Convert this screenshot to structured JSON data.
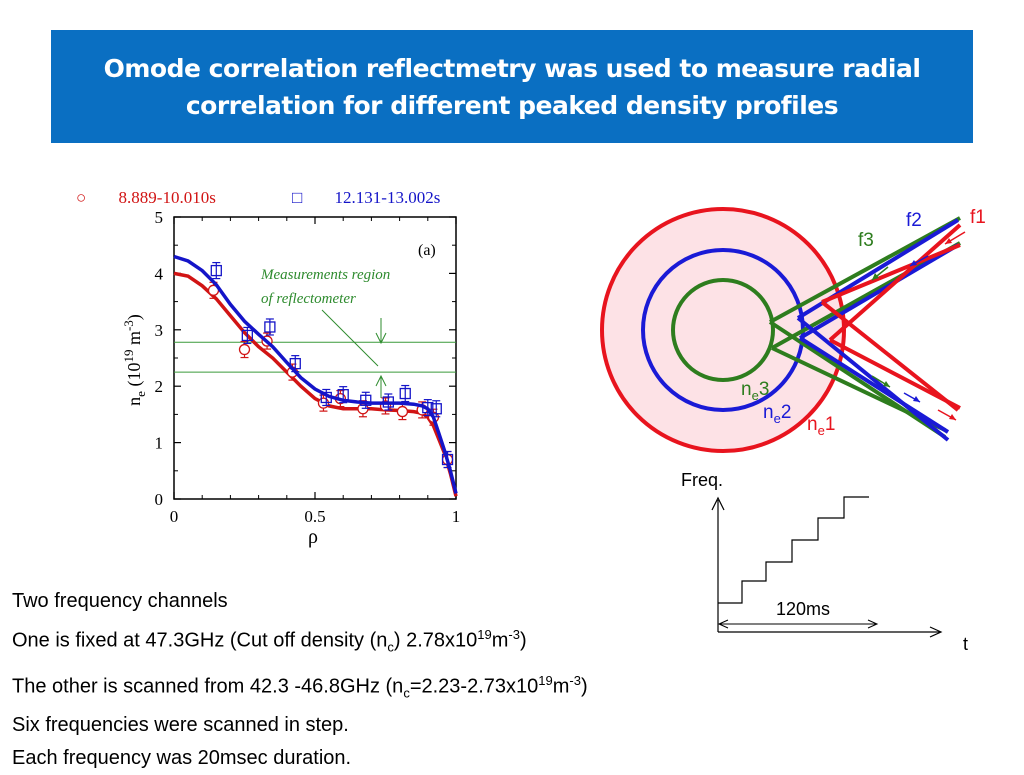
{
  "title": {
    "line1": "Omode correlation reflectmetry   was used to measure radial",
    "line2": "correlation for different peaked density profiles"
  },
  "legend": {
    "series1_marker": "○",
    "series1_label": "8.889-10.010s",
    "series1_color": "#d11414",
    "series2_marker": "□",
    "series2_label": "12.131-13.002s",
    "series2_color": "#1414c8"
  },
  "chart_data": {
    "type": "line",
    "panel_label": "(a)",
    "xlabel": "ρ",
    "ylabel_parts": [
      "n",
      "e",
      " (10",
      "19",
      " m",
      "-3",
      ")"
    ],
    "xlim": [
      0,
      1
    ],
    "ylim": [
      0,
      5
    ],
    "xticks": [
      "0",
      "0.5",
      "1"
    ],
    "yticks": [
      "0",
      "1",
      "2",
      "3",
      "4",
      "5"
    ],
    "annotation": [
      "Measurements region",
      "of reflectometer"
    ],
    "reference_lines": [
      2.78,
      2.25
    ],
    "series": [
      {
        "name": "8.889-10.010s",
        "color": "#d11414",
        "marker": "circle",
        "fit_x": [
          0.0,
          0.05,
          0.1,
          0.15,
          0.2,
          0.25,
          0.3,
          0.35,
          0.4,
          0.45,
          0.5,
          0.55,
          0.6,
          0.65,
          0.7,
          0.75,
          0.8,
          0.85,
          0.88,
          0.9,
          0.92,
          0.94,
          0.96,
          0.98,
          1.0
        ],
        "fit_y": [
          4.0,
          3.95,
          3.78,
          3.55,
          3.25,
          2.95,
          2.7,
          2.5,
          2.25,
          2.0,
          1.78,
          1.65,
          1.6,
          1.6,
          1.6,
          1.58,
          1.57,
          1.55,
          1.52,
          1.45,
          1.3,
          1.05,
          0.8,
          0.45,
          0.05
        ],
        "points_x": [
          0.14,
          0.25,
          0.33,
          0.42,
          0.53,
          0.59,
          0.67,
          0.75,
          0.81,
          0.88,
          0.92,
          0.97
        ],
        "points_y": [
          3.7,
          2.65,
          2.8,
          2.25,
          1.7,
          1.78,
          1.6,
          1.65,
          1.55,
          1.58,
          1.45,
          0.7
        ]
      },
      {
        "name": "12.131-13.002s",
        "color": "#1414c8",
        "marker": "square",
        "fit_x": [
          0.0,
          0.05,
          0.1,
          0.15,
          0.2,
          0.25,
          0.3,
          0.35,
          0.4,
          0.45,
          0.5,
          0.55,
          0.6,
          0.65,
          0.7,
          0.75,
          0.8,
          0.85,
          0.88,
          0.9,
          0.92,
          0.94,
          0.96,
          0.98,
          1.0
        ],
        "fit_y": [
          4.3,
          4.22,
          4.05,
          3.8,
          3.45,
          3.15,
          2.92,
          2.7,
          2.42,
          2.15,
          1.95,
          1.82,
          1.75,
          1.72,
          1.7,
          1.7,
          1.7,
          1.68,
          1.65,
          1.6,
          1.45,
          1.15,
          0.85,
          0.5,
          0.1
        ],
        "points_x": [
          0.15,
          0.26,
          0.34,
          0.43,
          0.54,
          0.6,
          0.68,
          0.76,
          0.82,
          0.9,
          0.93,
          0.97
        ],
        "points_y": [
          4.05,
          2.9,
          3.05,
          2.4,
          1.8,
          1.85,
          1.75,
          1.72,
          1.87,
          1.62,
          1.6,
          0.7
        ]
      }
    ]
  },
  "diagram": {
    "labels": {
      "f1": "f1",
      "f2": "f2",
      "f3": "f3",
      "n_letter": "n",
      "sub_e": "e",
      "ne1_num": "1",
      "ne2_num": "2",
      "ne3_num": "3"
    },
    "colors": {
      "red": "#e8141e",
      "blue": "#1a1ad6",
      "green": "#2e7d1e",
      "plasma_fill": "#fde2e6"
    }
  },
  "timing": {
    "y_label": "Freq.",
    "x_label": "t",
    "duration_label": "120ms"
  },
  "body": {
    "line1": "Two frequency channels",
    "line2_a": "One is  fixed at 47.3GHz (Cut off density (n",
    "line2_sub": "c",
    "line2_b": ") 2.78x10",
    "line2_sup1": "19",
    "line2_c": "m",
    "line2_sup2": "-3",
    "line2_d": ")",
    "line3_a": "The other is scanned from 42.3 -46.8GHz (n",
    "line3_sub": "c",
    "line3_b": "=2.23-2.73x10",
    "line3_sup1": "19",
    "line3_c": "m",
    "line3_sup2": "-3",
    "line3_d": ")",
    "line4": "Six frequencies were scanned in step.",
    "line5": "Each frequency was 20msec duration."
  }
}
